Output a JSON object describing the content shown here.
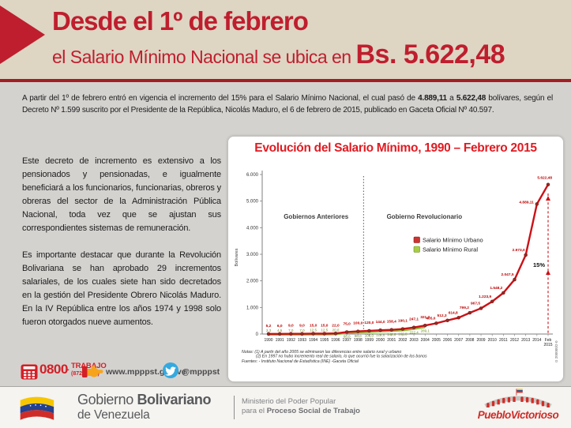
{
  "header": {
    "line1": "Desde el 1º de febrero",
    "line2_prefix": "el Salario Mínimo Nacional se ubica en ",
    "amount": "Bs. 5.622,48"
  },
  "intro": {
    "p1": "A partir del 1º de febrero entró en vigencia el incremento del 15% para el Salario Mínimo Nacional, el cual pasó de ",
    "b1": "4.889,11",
    "mid": " a ",
    "b2": "5.622,48",
    "p2": " bolívares, según el Decreto Nº 1.599 suscrito por el Presidente de la República, Nicolás Maduro, el 6 de febrero de 2015, publicado en Gaceta Oficial Nº 40.597."
  },
  "paragraphs": [
    "Este decreto de incremento es extensivo a los pensionados y pensionadas, e igualmente beneficiará a los funcionarios, funcionarias, obreros y obreras del sector de la Administración Pública Nacional, toda vez que se ajustan sus correspondientes sistemas de remuneración.",
    "Es importante destacar que durante la Revolución Bolivariana se han aprobado 29 incrementos salariales, de los cuales siete han sido decretados en la gestión del Presidente Obrero Nicolás Maduro.  En la IV República entre los años 1974 y 1998 solo fueron otorgados nueve aumentos."
  ],
  "chart_data": {
    "type": "line",
    "title": "Evolución del Salario Mínimo, 1990 – Febrero 2015",
    "ylabel": "Bolívares",
    "ylim": [
      0,
      6000
    ],
    "yticks": [
      "6.000",
      "5.000",
      "4.000",
      "3.000",
      "2.000",
      "1.000",
      "0"
    ],
    "grid": false,
    "legend_position": "center",
    "categories": [
      "1990",
      "1991",
      "1992",
      "1993",
      "1994",
      "1995",
      "1996",
      "1997",
      "1998",
      "1999",
      "2000",
      "2001",
      "2002",
      "2003",
      "2004",
      "2005",
      "2006",
      "2007",
      "2008",
      "2009",
      "2010",
      "2011",
      "2012",
      "2013",
      "2014",
      "Feb|2015"
    ],
    "series": [
      {
        "name": "Salario Mínimo Urbano",
        "color": "#ca3532",
        "edge": "#8b1a1a",
        "values": [
          5.2,
          6.0,
          9.0,
          9.0,
          15.0,
          15.0,
          22.0,
          75.0,
          100.0,
          120.0,
          144.0,
          158.4,
          190.1,
          247.1,
          321.2,
          405.0,
          512.3,
          614.8,
          799.2,
          967.5,
          1223.9,
          1548.2,
          2047.5,
          2973.0,
          4889.11,
          5622.48
        ],
        "labels": [
          "5,2",
          "6,0",
          "9,0",
          "9,0",
          "15,0",
          "15,0",
          "22,0",
          "75,0",
          "100,0",
          "120,0",
          "144,0",
          "158,4",
          "190,1",
          "247,1",
          "321,2",
          "405,0",
          "512,3",
          "614,8",
          "799,2",
          "967,5",
          "1.223,9",
          "1.548,2",
          "2.047,5",
          "2.973,0",
          "4.889,11",
          "5.622,48"
        ]
      },
      {
        "name": "Salario Mínimo Rural",
        "color": "#a8cc44",
        "edge": "#6d8a22",
        "values": [
          3.3,
          4.5,
          7.0,
          7.0,
          12.5,
          12.5,
          20.0,
          68.0,
          90.0,
          108.0,
          129.6,
          142.6,
          166.8,
          222.4,
          289.1
        ],
        "labels": [
          "3,3",
          "4,5",
          "7,0",
          "7,0",
          "12,5",
          "12,5",
          "20,0",
          "68,0",
          "90,0",
          "108,0",
          "129,6",
          "142,6",
          "166,8",
          "222,4",
          "289,1"
        ]
      }
    ],
    "region_labels": {
      "left": "Gobiernos Anteriores",
      "right": "Gobierno Revolucionario"
    },
    "annotation_pct": "15%",
    "notes": [
      "Notas: (1) A partir del año 2005 se eliminaron las diferencias entre salario rural y urbano",
      "(2) En 1997 no hubo incremento real de salario, lo que ocurrió fue la salarización de los bonos"
    ],
    "sources": "Fuentes: - Instituto Nacional de Estadística (INE) -Gaceta Oficial",
    "side_code": "G 200000/2-0"
  },
  "footer": {
    "phone_number": "0800",
    "phone_dash": "-",
    "phone_word": "TRABAJO",
    "phone_digits": "(872.22.56)",
    "website": "www.mpppst.gob.ve",
    "twitter": "@mpppst"
  },
  "brandbar": {
    "gov_a": "Gobierno ",
    "gov_b": "Bolivariano",
    "gov_line2": "de Venezuela",
    "ministry_line1": "Ministerio del Poder Popular",
    "ministry_line2_a": "para el ",
    "ministry_line2_b": "Proceso Social de Trabajo",
    "pueblo_a": "Pueblo",
    "pueblo_b": "Victorioso"
  },
  "colors": {
    "accent_red": "#bf1e2e",
    "chart_red": "#cd1016",
    "rural_green": "#8fbe3c",
    "header_bg": "#ded5c3",
    "body_bg": "#d4d2cf",
    "twitter_blue": "#35a9df"
  }
}
